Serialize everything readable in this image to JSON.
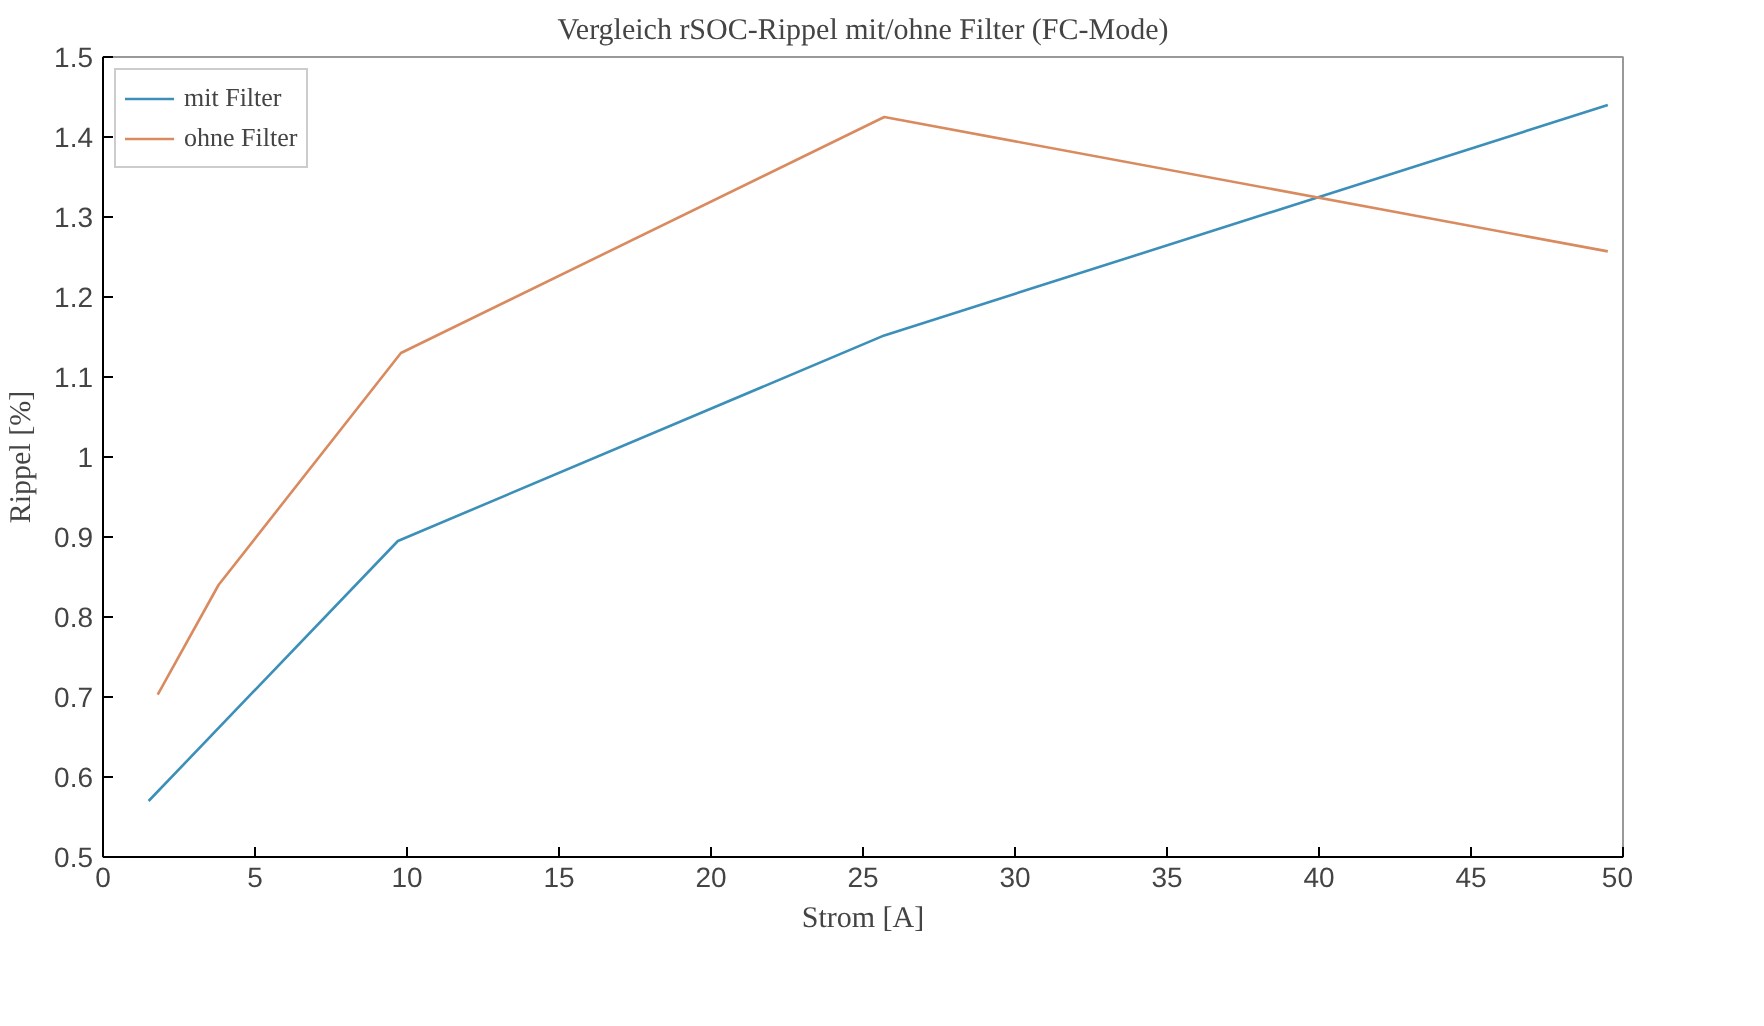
{
  "chart_data": {
    "type": "line",
    "title": "Vergleich rSOC-Rippel mit/ohne Filter (FC-Mode)",
    "xlabel": "Strom [A]",
    "ylabel": "Rippel [%]",
    "series": [
      {
        "name": "mit Filter",
        "color": "#3c8fb8",
        "x": [
          1.5,
          9.7,
          25.7,
          49.5
        ],
        "values": [
          0.57,
          0.895,
          1.152,
          1.44
        ]
      },
      {
        "name": "ohne Filter",
        "color": "#d98a5f",
        "x": [
          1.8,
          3.8,
          9.8,
          25.7,
          49.5
        ],
        "values": [
          0.703,
          0.84,
          1.13,
          1.425,
          1.257
        ]
      }
    ],
    "xlim": [
      0,
      50
    ],
    "xticks": [
      0,
      5,
      10,
      15,
      20,
      25,
      30,
      35,
      40,
      45,
      50
    ],
    "ylim": [
      0.5,
      1.5
    ],
    "yticks": [
      0.5,
      {
        "value": 0.6,
        "label": "0.6"
      },
      0.7,
      0.8,
      0.9,
      1,
      1.1,
      1.2,
      1.3,
      1.4,
      1.5
    ],
    "grid": false,
    "legend": "top left",
    "marker": "none",
    "line_style": "solid"
  }
}
